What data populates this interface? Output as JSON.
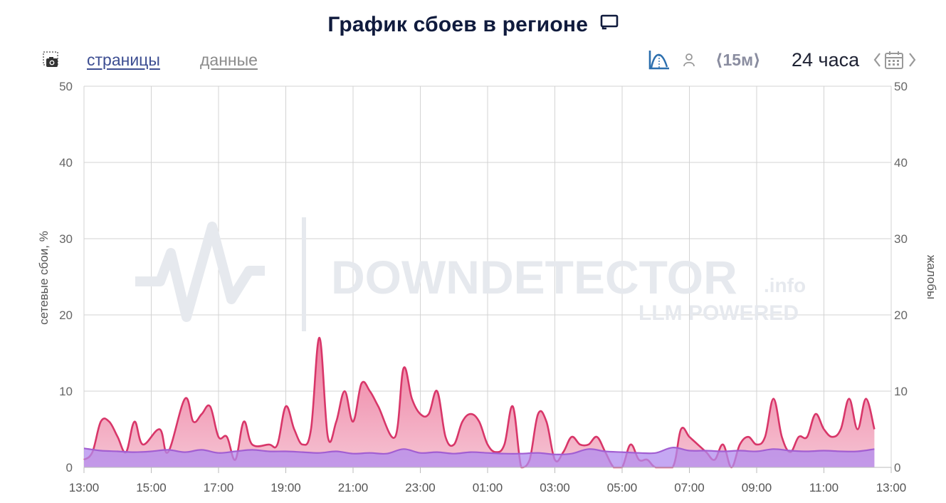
{
  "header": {
    "title": "График сбоев в регионе"
  },
  "toolbar": {
    "tab_pages": "страницы",
    "tab_data": "данные",
    "interval": "⟨15м⟩",
    "range": "24 часа"
  },
  "colors": {
    "complaints_line": "#d83669",
    "complaints_fill_top": "#ef7d9f",
    "complaints_fill_bottom": "#f5c3d3",
    "network_line": "#a25ed2",
    "network_fill": "#b18bef",
    "grid": "#d3d3d3",
    "watermark": "#e8ebef"
  },
  "watermark": {
    "brand": "DOWNDETECTOR",
    "suffix": ".info",
    "sub": "LLM POWERED"
  },
  "chart_data": {
    "type": "area",
    "ylabel_left": "сетевые сбои, %",
    "ylabel_right": "жалобы",
    "ylim": [
      0,
      50
    ],
    "y_ticks": [
      0,
      10,
      20,
      30,
      40,
      50
    ],
    "x_ticks": [
      "13:00",
      "15:00",
      "17:00",
      "19:00",
      "21:00",
      "23:00",
      "01:00",
      "03:00",
      "05:00",
      "07:00",
      "09:00",
      "11:00",
      "13:00"
    ],
    "grid": true,
    "series": [
      {
        "values": [
          [
            0,
            1
          ],
          [
            0.25,
            2
          ],
          [
            0.5,
            6
          ],
          [
            0.75,
            6
          ],
          [
            1.0,
            4
          ],
          [
            1.25,
            2
          ],
          [
            1.5,
            6
          ],
          [
            1.75,
            3
          ],
          [
            2.25,
            5
          ],
          [
            2.5,
            2
          ],
          [
            3.0,
            9
          ],
          [
            3.25,
            6
          ],
          [
            3.5,
            7
          ],
          [
            3.75,
            8
          ],
          [
            4.0,
            4
          ],
          [
            4.25,
            4
          ],
          [
            4.5,
            1
          ],
          [
            4.75,
            6
          ],
          [
            5.0,
            3
          ],
          [
            5.5,
            3
          ],
          [
            5.75,
            3
          ],
          [
            6.0,
            8
          ],
          [
            6.25,
            5
          ],
          [
            6.5,
            3
          ],
          [
            6.75,
            5
          ],
          [
            7.0,
            17
          ],
          [
            7.25,
            4
          ],
          [
            7.5,
            6
          ],
          [
            7.75,
            10
          ],
          [
            8.0,
            6
          ],
          [
            8.25,
            11
          ],
          [
            8.5,
            10
          ],
          [
            8.75,
            8
          ],
          [
            9.25,
            4
          ],
          [
            9.5,
            13
          ],
          [
            9.75,
            9
          ],
          [
            10.0,
            7
          ],
          [
            10.25,
            7
          ],
          [
            10.5,
            10
          ],
          [
            10.75,
            4
          ],
          [
            11.0,
            3
          ],
          [
            11.25,
            6
          ],
          [
            11.5,
            7
          ],
          [
            11.75,
            6
          ],
          [
            12.0,
            3
          ],
          [
            12.25,
            2
          ],
          [
            12.5,
            3
          ],
          [
            12.75,
            8
          ],
          [
            13.0,
            0
          ],
          [
            13.25,
            1
          ],
          [
            13.5,
            7
          ],
          [
            13.75,
            6
          ],
          [
            14.0,
            1
          ],
          [
            14.25,
            2
          ],
          [
            14.5,
            4
          ],
          [
            14.75,
            3
          ],
          [
            15.0,
            3
          ],
          [
            15.25,
            4
          ],
          [
            15.5,
            2
          ],
          [
            15.75,
            0
          ],
          [
            16.0,
            0
          ],
          [
            16.25,
            3
          ],
          [
            16.5,
            1
          ],
          [
            16.75,
            1
          ],
          [
            17.0,
            0
          ],
          [
            17.5,
            0
          ],
          [
            17.75,
            5
          ],
          [
            18.0,
            4
          ],
          [
            18.25,
            3
          ],
          [
            18.5,
            2
          ],
          [
            18.75,
            1
          ],
          [
            19.0,
            3
          ],
          [
            19.25,
            0
          ],
          [
            19.5,
            3
          ],
          [
            19.75,
            4
          ],
          [
            20.0,
            3
          ],
          [
            20.25,
            4
          ],
          [
            20.5,
            9
          ],
          [
            20.75,
            4
          ],
          [
            21.0,
            2
          ],
          [
            21.25,
            4
          ],
          [
            21.5,
            4
          ],
          [
            21.75,
            7
          ],
          [
            22.0,
            5
          ],
          [
            22.25,
            4
          ],
          [
            22.5,
            5
          ],
          [
            22.75,
            9
          ],
          [
            23.0,
            5
          ],
          [
            23.25,
            9
          ],
          [
            23.5,
            5
          ]
        ]
      },
      {
        "values": [
          [
            0,
            2.5
          ],
          [
            0.5,
            2.2
          ],
          [
            1.0,
            2.1
          ],
          [
            1.5,
            2.0
          ],
          [
            2.0,
            2.1
          ],
          [
            2.5,
            2.3
          ],
          [
            3.0,
            2.0
          ],
          [
            3.5,
            2.3
          ],
          [
            4.0,
            1.9
          ],
          [
            4.5,
            2.1
          ],
          [
            5.0,
            2.3
          ],
          [
            5.5,
            2.1
          ],
          [
            6.0,
            2.1
          ],
          [
            6.5,
            2.0
          ],
          [
            7.0,
            1.9
          ],
          [
            7.5,
            2.1
          ],
          [
            8.0,
            1.8
          ],
          [
            8.5,
            1.9
          ],
          [
            9.0,
            1.8
          ],
          [
            9.5,
            2.4
          ],
          [
            10.0,
            1.9
          ],
          [
            10.5,
            2.0
          ],
          [
            11.0,
            1.8
          ],
          [
            11.5,
            2.0
          ],
          [
            12.0,
            1.9
          ],
          [
            12.5,
            1.8
          ],
          [
            13.0,
            1.8
          ],
          [
            13.5,
            1.9
          ],
          [
            14.0,
            1.7
          ],
          [
            14.5,
            1.8
          ],
          [
            15.0,
            2.4
          ],
          [
            15.5,
            2.1
          ],
          [
            16.0,
            2.0
          ],
          [
            16.5,
            1.9
          ],
          [
            17.0,
            1.9
          ],
          [
            17.5,
            2.6
          ],
          [
            18.0,
            2.2
          ],
          [
            18.5,
            2.2
          ],
          [
            19.0,
            2.1
          ],
          [
            19.5,
            2.2
          ],
          [
            20.0,
            2.1
          ],
          [
            20.5,
            2.4
          ],
          [
            21.0,
            2.2
          ],
          [
            21.5,
            2.1
          ],
          [
            22.0,
            2.2
          ],
          [
            22.5,
            2.1
          ],
          [
            23.0,
            2.1
          ],
          [
            23.5,
            2.4
          ]
        ]
      }
    ]
  }
}
